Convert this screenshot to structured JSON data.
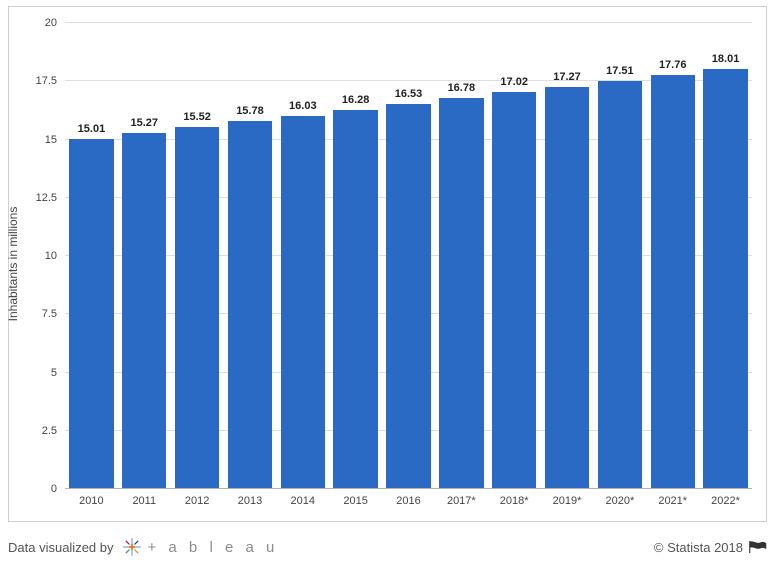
{
  "chart": {
    "type": "bar",
    "ylabel": "Inhabitants in millions",
    "ylim": [
      0,
      20
    ],
    "ytick_step": 2.5,
    "yticks": [
      "0",
      "2.5",
      "5",
      "7.5",
      "10",
      "12.5",
      "15",
      "17.5",
      "20"
    ],
    "categories": [
      "2010",
      "2011",
      "2012",
      "2013",
      "2014",
      "2015",
      "2016",
      "2017*",
      "2018*",
      "2019*",
      "2020*",
      "2021*",
      "2022*"
    ],
    "values": [
      15.01,
      15.27,
      15.52,
      15.78,
      16.03,
      16.28,
      16.53,
      16.78,
      17.02,
      17.27,
      17.51,
      17.76,
      18.01
    ],
    "value_labels": [
      "15.01",
      "15.27",
      "15.52",
      "15.78",
      "16.03",
      "16.28",
      "16.53",
      "16.78",
      "17.02",
      "17.27",
      "17.51",
      "17.76",
      "18.01"
    ],
    "bar_color": "#2a6ac4",
    "bar_width": 0.84,
    "background_color": "#ffffff",
    "grid_color": "#dedede",
    "border_color": "#cfcfcf",
    "label_fontsize": 11,
    "label_fontweight": "700",
    "tick_fontsize": 11,
    "ylabel_fontsize": 12
  },
  "footer": {
    "prefix": "Data visualized by",
    "tool_name": "+ a b l e a u",
    "attribution": "© Statista 2018"
  }
}
